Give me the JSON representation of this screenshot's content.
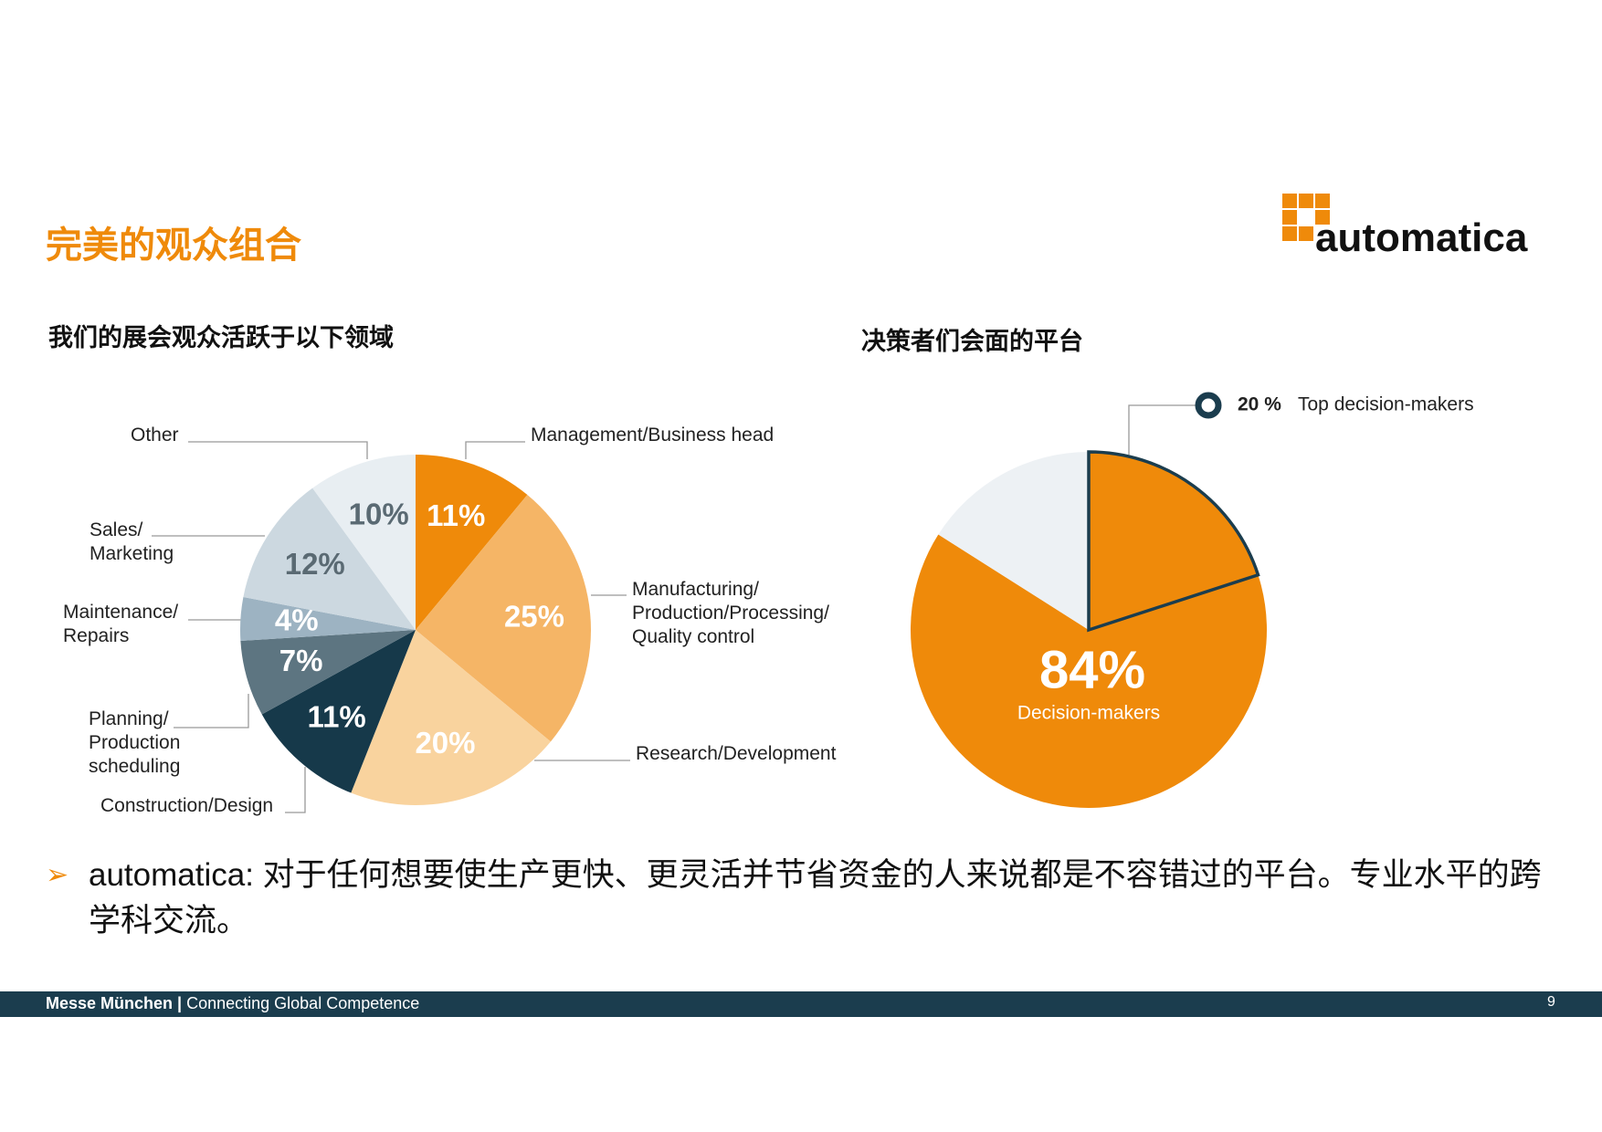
{
  "header": {
    "title": "完美的观众组合",
    "logo": "automatica"
  },
  "chart_data": [
    {
      "type": "pie",
      "title": "我们的展会观众活跃于以下领域",
      "categories": [
        "Management/Business head",
        "Manufacturing/\nProduction/Processing/\nQuality control",
        "Research/Development",
        "Construction/Design",
        "Planning/\nProduction\nscheduling",
        "Maintenance/\nRepairs",
        "Sales/\nMarketing",
        "Other"
      ],
      "values": [
        11,
        25,
        20,
        11,
        7,
        4,
        12,
        10
      ],
      "value_labels": [
        "11%",
        "25%",
        "20%",
        "11%",
        "7%",
        "4%",
        "12%",
        "10%"
      ],
      "colors": [
        "#ef8a0a",
        "#f5b566",
        "#f9d39e",
        "#16394a",
        "#5d7581",
        "#9db3c2",
        "#ccd8e0",
        "#e8eef2"
      ]
    },
    {
      "type": "pie",
      "title": "决策者们会面的平台",
      "categories": [
        "Decision-makers",
        null
      ],
      "values": [
        84,
        16
      ],
      "value_labels": [
        "84%",
        null
      ],
      "colors": [
        "#ef8a0a",
        "#edf1f4"
      ],
      "highlight": {
        "value": 20,
        "value_label": "20 %",
        "label": "Top decision-makers",
        "color": "#1b3d4e"
      }
    }
  ],
  "bullet": "automatica: 对于任何想要使生产更快、更灵活并节省资金的人来说都是不容错过的平台。专业水平的跨学科交流。",
  "footer": {
    "brand": "Messe München |",
    "tagline": "Connecting Global Competence",
    "page": "9"
  }
}
